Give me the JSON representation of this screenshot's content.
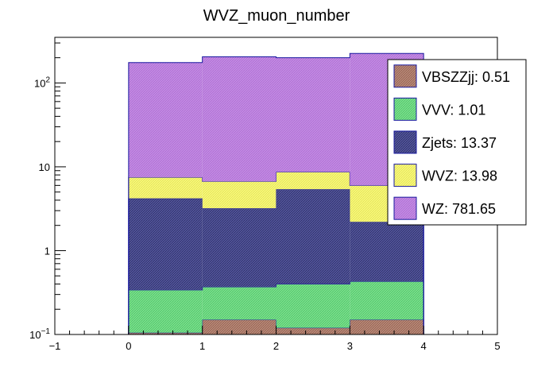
{
  "chart_data": {
    "type": "bar",
    "stacked": true,
    "histogram": true,
    "title": "WVZ_muon_number",
    "xlabel": "",
    "ylabel": "",
    "xlim": [
      -1,
      5
    ],
    "ylim": [
      0.1,
      350
    ],
    "log_y": true,
    "grid": false,
    "legend_position": "top-right",
    "bin_edges": [
      0,
      1,
      2,
      3,
      4
    ],
    "x_ticks": [
      {
        "value": -1,
        "label": "−1"
      },
      {
        "value": 0,
        "label": "0"
      },
      {
        "value": 1,
        "label": "1"
      },
      {
        "value": 2,
        "label": "2"
      },
      {
        "value": 3,
        "label": "3"
      },
      {
        "value": 4,
        "label": "4"
      },
      {
        "value": 5,
        "label": "5"
      }
    ],
    "y_ticks": [
      {
        "value": 0.1,
        "base": "10",
        "exp": "−1"
      },
      {
        "value": 1,
        "base": "1",
        "exp": ""
      },
      {
        "value": 10,
        "base": "10",
        "exp": ""
      },
      {
        "value": 100,
        "base": "10",
        "exp": "2"
      }
    ],
    "series": [
      {
        "name": "VBSZZjj",
        "legend": "VBSZZjj: 0.51",
        "color": "#b58a79",
        "hatch": "#8c4b3c",
        "tops": [
          0.105,
          0.15,
          0.12,
          0.15
        ]
      },
      {
        "name": "VVV",
        "legend": "VVV: 1.01",
        "color": "#7be08b",
        "hatch": "#3cb55e",
        "tops": [
          0.34,
          0.37,
          0.4,
          0.43
        ]
      },
      {
        "name": "Zjets",
        "legend": "Zjets: 13.37",
        "color": "#53569d",
        "hatch": "#1e1e4d",
        "tops": [
          4.2,
          3.2,
          5.4,
          2.2
        ]
      },
      {
        "name": "WVZ",
        "legend": "WVZ: 13.98",
        "color": "#f8f87a",
        "hatch": "#d8d84a",
        "tops": [
          7.5,
          6.7,
          8.7,
          6.0
        ]
      },
      {
        "name": "WZ",
        "legend": "WZ: 781.65",
        "color": "#c38ae4",
        "hatch": "#a464c8",
        "tops": [
          175,
          205,
          200,
          225
        ]
      }
    ]
  }
}
